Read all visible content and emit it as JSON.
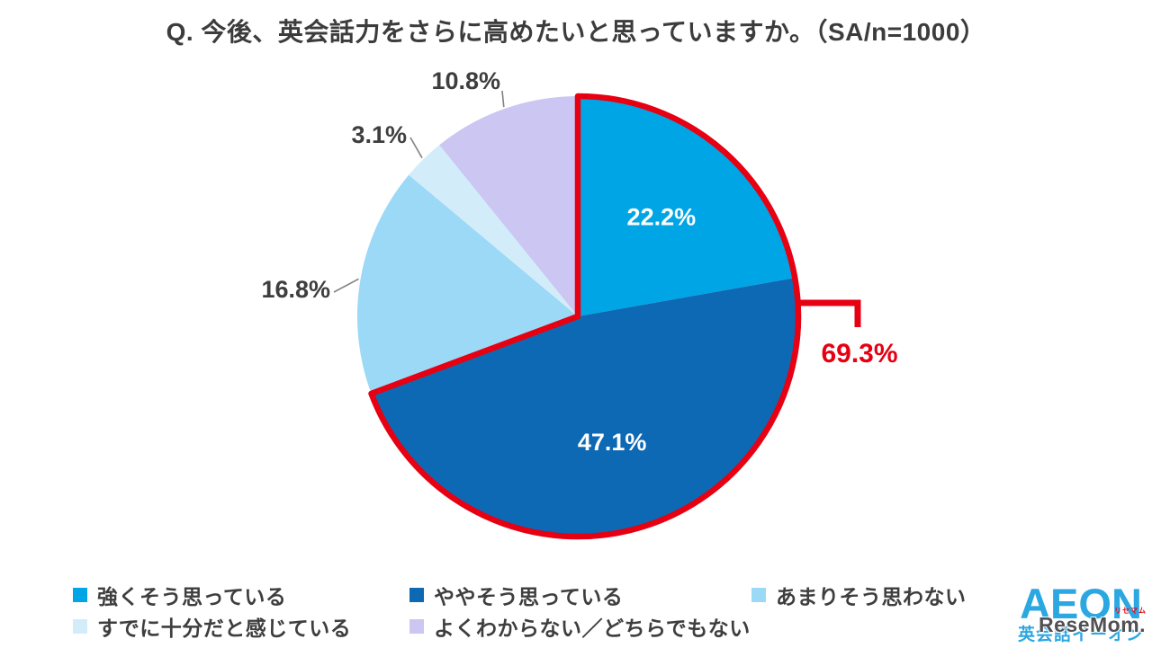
{
  "chart_data": {
    "type": "pie",
    "title": "Q. 今後、英会話力をさらに高めたいと思っていますか。（SA/n=1000）",
    "direction": "clockwise",
    "start_angle_deg": 0,
    "legend_position": "bottom",
    "series": [
      {
        "name": "強くそう思っている",
        "value": 22.2,
        "label": "22.2%",
        "label_placement": "inside",
        "color": "#00a5e6"
      },
      {
        "name": "ややそう思っている",
        "value": 47.1,
        "label": "47.1%",
        "label_placement": "inside",
        "color": "#0d69b3"
      },
      {
        "name": "あまりそう思わない",
        "value": 16.8,
        "label": "16.8%",
        "label_placement": "outside",
        "color": "#9cd9f6"
      },
      {
        "name": "すでに十分だと感じている",
        "value": 3.1,
        "label": "3.1%",
        "label_placement": "outside",
        "color": "#d2ecfa"
      },
      {
        "name": "よくわからない／どちらでもない",
        "value": 10.8,
        "label": "10.8%",
        "label_placement": "outside",
        "color": "#cbc6f2"
      }
    ],
    "highlight": {
      "slice_indices": [
        0,
        1
      ],
      "total_label": "69.3%",
      "color": "#e60012"
    },
    "label_colors": {
      "inside": "#ffffff",
      "outside": "#3e3e3e"
    },
    "leader_line_color": "#828282"
  },
  "branding": {
    "logo_text": "AEON",
    "logo_subtext": "英会話イーオン",
    "logo_color": "#2ba7e1",
    "watermark": "ReseMom.",
    "watermark_ruby": "リセマム"
  }
}
